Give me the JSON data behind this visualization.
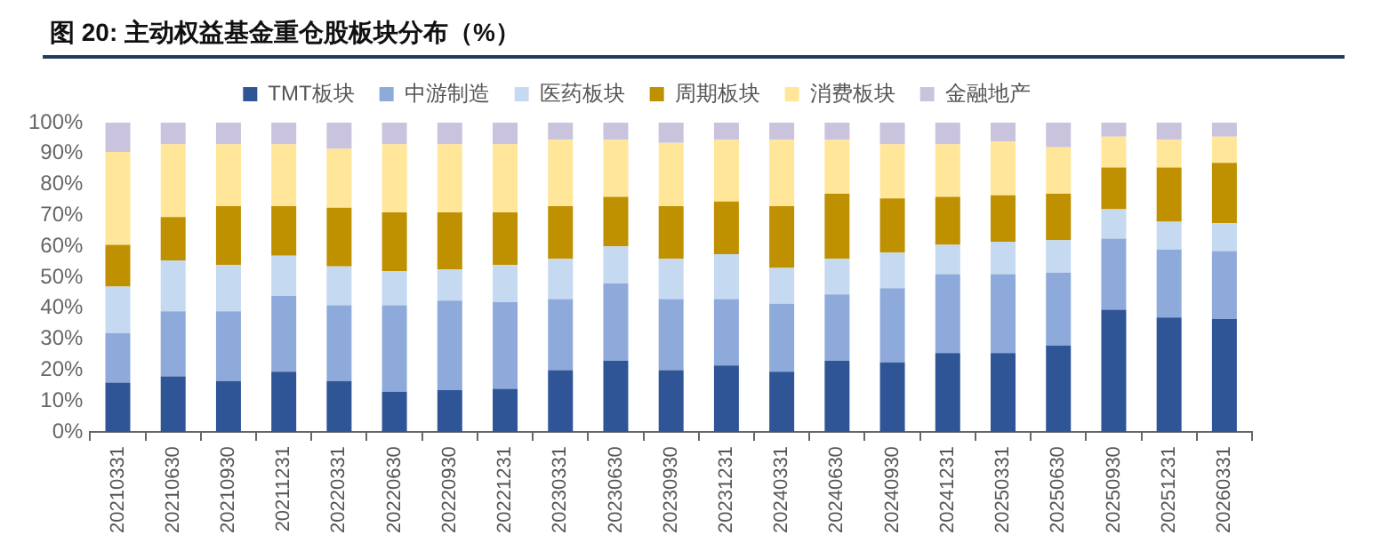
{
  "chart_data": {
    "type": "bar",
    "title": "图 20: 主动权益基金重仓股板块分布（%）",
    "stacked": true,
    "legend": "top",
    "grid": false,
    "categories": [
      "20210331",
      "20210630",
      "20210930",
      "20211231",
      "20220331",
      "20220630",
      "20220930",
      "20221231",
      "20230331",
      "20230630",
      "20230930",
      "20231231",
      "20240331",
      "20240630",
      "20240930",
      "20241231",
      "20250331",
      "20250630",
      "20250930",
      "20251231",
      "20260331"
    ],
    "ylim": [
      0,
      100
    ],
    "yticks": [
      {
        "value": 0,
        "label": "0%"
      },
      {
        "value": 10,
        "label": "10%"
      },
      {
        "value": 20,
        "label": "20%"
      },
      {
        "value": 30,
        "label": "30%"
      },
      {
        "value": 40,
        "label": "40%"
      },
      {
        "value": 50,
        "label": "50%"
      },
      {
        "value": 60,
        "label": "60%"
      },
      {
        "value": 70,
        "label": "70%"
      },
      {
        "value": 80,
        "label": "80%"
      },
      {
        "value": 90,
        "label": "90%"
      },
      {
        "value": 100,
        "label": "100%"
      }
    ],
    "series": [
      {
        "name": "TMT板块",
        "color": "#2f5597",
        "values": [
          16,
          18,
          16.5,
          19.5,
          16.5,
          13,
          13.5,
          14,
          20,
          23,
          20,
          21.5,
          19.5,
          23,
          22.5,
          25.5,
          25.5,
          28,
          39.5,
          37,
          36.5
        ]
      },
      {
        "name": "中游制造",
        "color": "#8eaadb",
        "values": [
          16,
          21,
          22.5,
          24.5,
          24.5,
          28,
          29,
          28,
          23,
          25,
          23,
          21.5,
          22,
          21.5,
          24,
          25.5,
          25.5,
          23.5,
          23,
          22,
          22
        ]
      },
      {
        "name": "医药板块",
        "color": "#c5d9f1",
        "values": [
          15,
          16.5,
          15,
          13,
          12.5,
          11,
          10,
          12,
          13,
          12,
          13,
          14.5,
          11.5,
          11.5,
          11.5,
          9.5,
          10.5,
          10.5,
          9.5,
          9,
          9
        ]
      },
      {
        "name": "周期板块",
        "color": "#bf9000",
        "values": [
          13.5,
          14,
          19,
          16,
          19,
          19,
          18.5,
          17,
          17,
          16,
          17,
          17,
          20,
          21,
          17.5,
          15.5,
          15,
          15,
          13.5,
          17.5,
          19.5
        ]
      },
      {
        "name": "消费板块",
        "color": "#ffe699",
        "values": [
          30,
          23.5,
          20,
          20,
          19,
          22,
          22,
          22,
          21.5,
          18.5,
          20.5,
          20,
          21.5,
          17.5,
          17.5,
          17,
          17.5,
          15,
          10,
          9,
          8.5
        ]
      },
      {
        "name": "金融地产",
        "color": "#c9c3dd",
        "values": [
          9.5,
          7,
          7,
          7,
          8.5,
          7,
          7,
          7,
          5.5,
          5.5,
          6.5,
          5.5,
          5.5,
          5.5,
          7,
          7,
          6,
          8,
          4.5,
          5.5,
          4.5
        ]
      }
    ]
  }
}
